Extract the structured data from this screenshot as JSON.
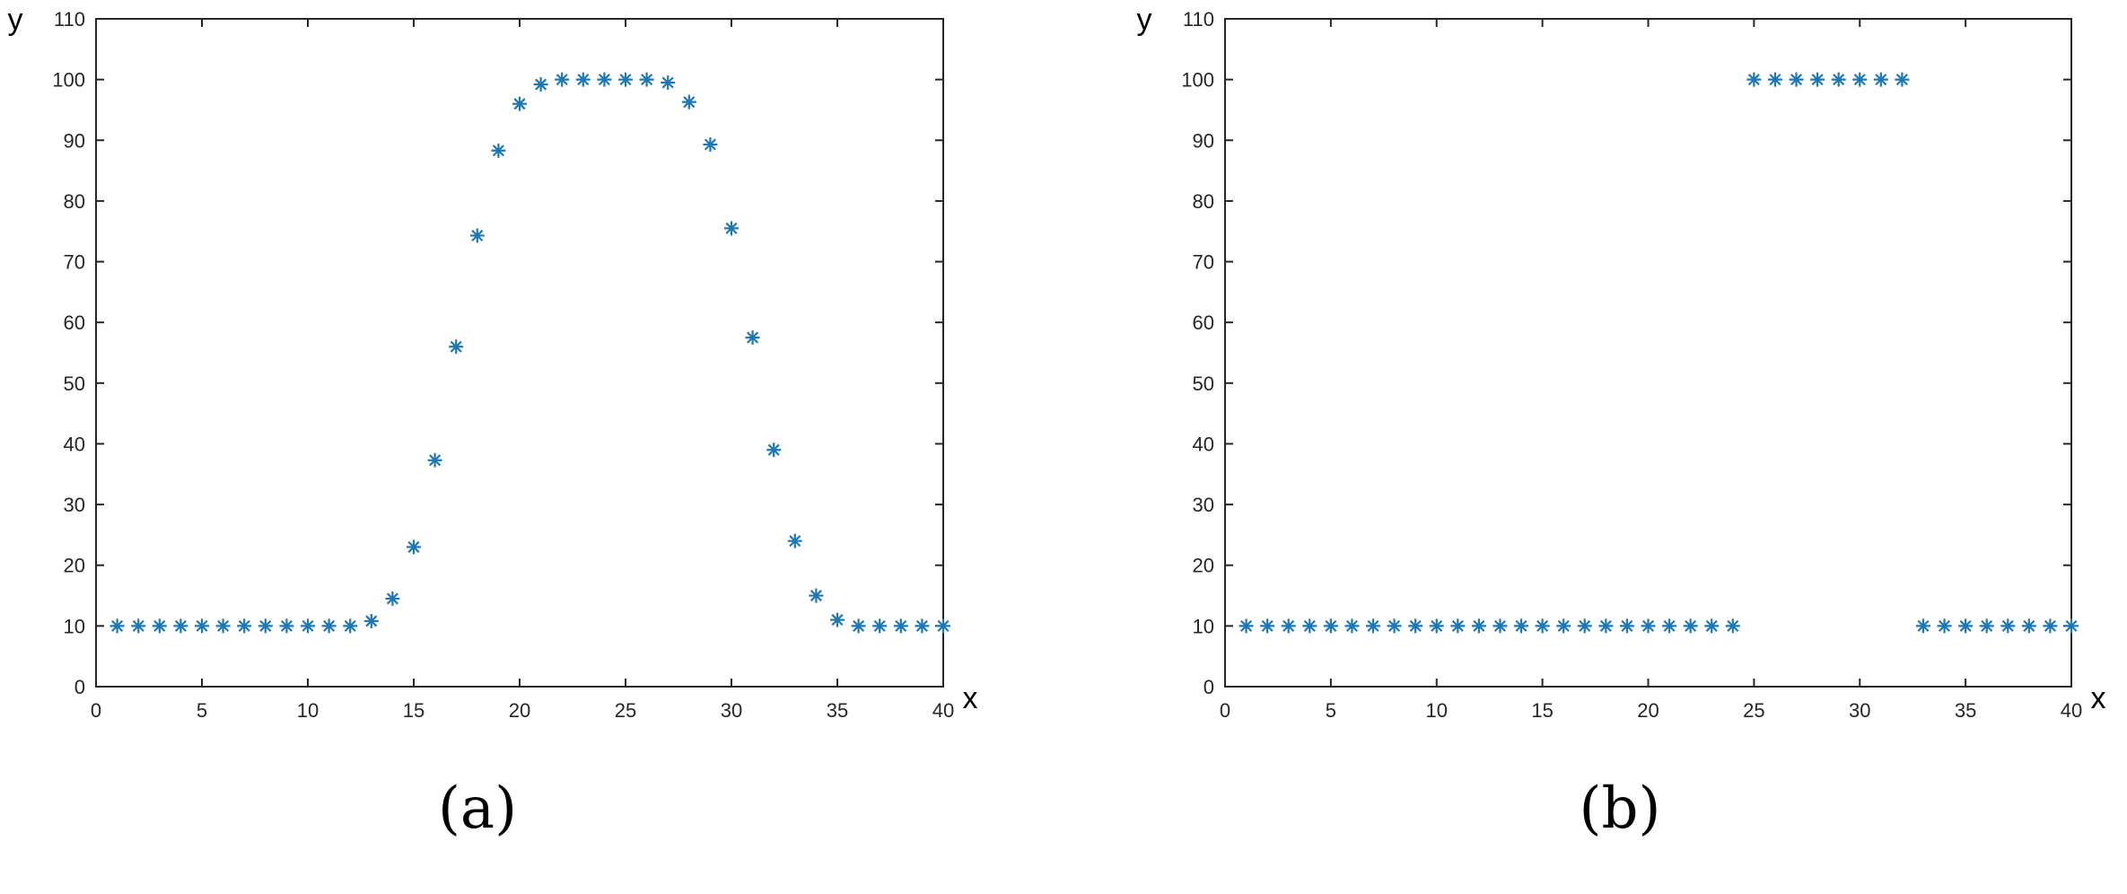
{
  "colors": {
    "marker": "#1f77b4",
    "axes": "#262626",
    "background": "#ffffff"
  },
  "chart_data": [
    {
      "type": "scatter",
      "marker": "asterisk",
      "xlabel": "x",
      "ylabel": "y",
      "xlim": [
        0,
        40
      ],
      "ylim": [
        0,
        110
      ],
      "xticks": [
        "0",
        "5",
        "10",
        "15",
        "20",
        "25",
        "30",
        "35",
        "40"
      ],
      "yticks": [
        "0",
        "10",
        "20",
        "30",
        "40",
        "50",
        "60",
        "70",
        "80",
        "90",
        "100",
        "110"
      ],
      "grid": false,
      "caption": "(a)",
      "x": [
        1,
        2,
        3,
        4,
        5,
        6,
        7,
        8,
        9,
        10,
        11,
        12,
        13,
        14,
        15,
        16,
        17,
        18,
        19,
        20,
        21,
        22,
        23,
        24,
        25,
        26,
        27,
        28,
        29,
        30,
        31,
        32,
        33,
        34,
        35,
        36,
        37,
        38,
        39,
        40
      ],
      "y": [
        10,
        10,
        10,
        10,
        10,
        10,
        10,
        10,
        10,
        10,
        10,
        10,
        10.8,
        14.5,
        23,
        37.3,
        56,
        74.3,
        88.3,
        96,
        99.2,
        100,
        100,
        100,
        100,
        100,
        99.5,
        96.3,
        89.3,
        75.5,
        57.5,
        39,
        24,
        15,
        11,
        10,
        10,
        10,
        10,
        10
      ]
    },
    {
      "type": "scatter",
      "marker": "asterisk",
      "xlabel": "x",
      "ylabel": "y",
      "xlim": [
        0,
        40
      ],
      "ylim": [
        0,
        110
      ],
      "xticks": [
        "0",
        "5",
        "10",
        "15",
        "20",
        "25",
        "30",
        "35",
        "40"
      ],
      "yticks": [
        "0",
        "10",
        "20",
        "30",
        "40",
        "50",
        "60",
        "70",
        "80",
        "90",
        "100",
        "110"
      ],
      "grid": false,
      "caption": "(b)",
      "x": [
        1,
        2,
        3,
        4,
        5,
        6,
        7,
        8,
        9,
        10,
        11,
        12,
        13,
        14,
        15,
        16,
        17,
        18,
        19,
        20,
        21,
        22,
        23,
        24,
        25,
        26,
        27,
        28,
        29,
        30,
        31,
        32,
        33,
        34,
        35,
        36,
        37,
        38,
        39,
        40
      ],
      "y": [
        10,
        10,
        10,
        10,
        10,
        10,
        10,
        10,
        10,
        10,
        10,
        10,
        10,
        10,
        10,
        10,
        10,
        10,
        10,
        10,
        10,
        10,
        10,
        10,
        100,
        100,
        100,
        100,
        100,
        100,
        100,
        100,
        10,
        10,
        10,
        10,
        10,
        10,
        10,
        10
      ]
    }
  ]
}
